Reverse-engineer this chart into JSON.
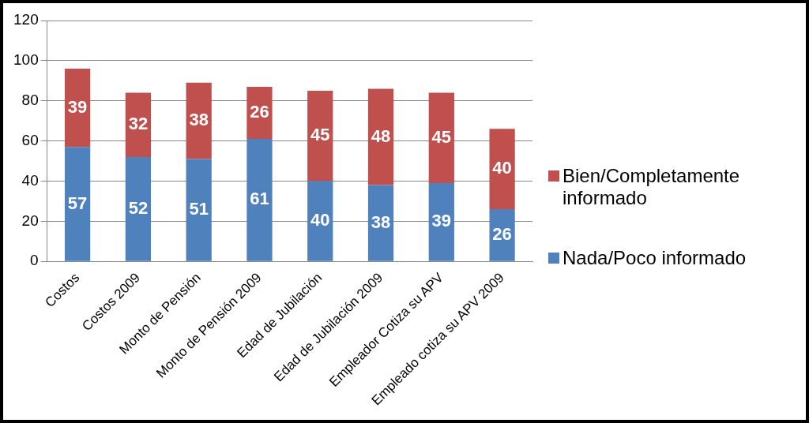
{
  "chart_data": {
    "type": "bar",
    "stacked": true,
    "categories": [
      "Costos",
      "Costos 2009",
      "Monto de Pensión",
      "Monto de Pensión 2009",
      "Edad de Jubilación",
      "Edad de Jubilación 2009",
      "Empleador Cotiza su APV",
      "Empleado cotiza su APV 2009"
    ],
    "series": [
      {
        "name": "Nada/Poco informado",
        "color": "#4f81bd",
        "values": [
          57,
          52,
          51,
          61,
          40,
          38,
          39,
          26
        ]
      },
      {
        "name": "Bien/Completamente informado",
        "color": "#c0504d",
        "values": [
          39,
          32,
          38,
          26,
          45,
          48,
          45,
          40
        ]
      }
    ],
    "ylim": [
      0,
      120
    ],
    "yticks": [
      0,
      20,
      40,
      60,
      80,
      100,
      120
    ],
    "grid": "y",
    "legend": "right",
    "data_labels": true
  }
}
